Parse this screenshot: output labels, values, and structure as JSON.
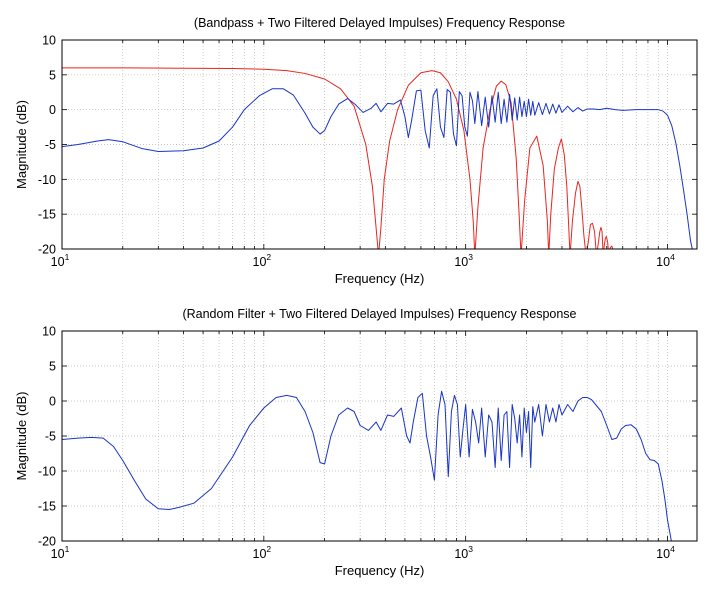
{
  "chart_data": [
    {
      "type": "line",
      "title": "(Bandpass + Two Filtered Delayed Impulses) Frequency Response",
      "xlabel": "Frequency (Hz)",
      "ylabel": "Magnitude (dB)",
      "xscale": "log",
      "xlim": [
        10,
        14000
      ],
      "ylim": [
        -20,
        10
      ],
      "grid": true,
      "yticks": [
        "10",
        "5",
        "0",
        "-5",
        "-10",
        "-15",
        "-20"
      ],
      "xtick_base": "10",
      "xtick_exponents": [
        "1",
        "2",
        "3",
        "4"
      ],
      "series": [
        {
          "color": "#e8261f",
          "x": [
            10,
            20,
            40,
            70,
            100,
            130,
            160,
            200,
            240,
            280,
            320,
            345,
            360,
            370,
            380,
            395,
            420,
            460,
            520,
            600,
            680,
            750,
            820,
            900,
            980,
            1050,
            1090,
            1110,
            1150,
            1220,
            1320,
            1420,
            1500,
            1580,
            1680,
            1780,
            1840,
            1880,
            1960,
            2080,
            2250,
            2420,
            2540,
            2580,
            2640,
            2750,
            2880,
            2980,
            3080,
            3170,
            3230,
            3290,
            3380,
            3500,
            3600,
            3680,
            3760,
            3850,
            3950,
            4050,
            4150,
            4250,
            4350,
            4450,
            4550,
            4620,
            4680,
            4740,
            4800,
            4860,
            4920,
            4980,
            5050,
            5120,
            5180,
            5240,
            5300,
            5360,
            5420,
            5480
          ],
          "y": [
            6,
            6,
            5.95,
            5.9,
            5.8,
            5.6,
            5.2,
            4.4,
            3,
            0.5,
            -5,
            -11,
            -17,
            -21,
            -17,
            -10,
            -4.5,
            0,
            3.5,
            5.3,
            5.6,
            5.3,
            4,
            1.5,
            -3,
            -10,
            -16,
            -21,
            -14,
            -5.5,
            0,
            3.4,
            4.1,
            3.6,
            1,
            -7,
            -15,
            -21,
            -13,
            -5.5,
            -3.8,
            -8,
            -16,
            -21,
            -15,
            -8.5,
            -5.5,
            -4.2,
            -6.5,
            -11,
            -16,
            -21,
            -16,
            -12,
            -10.3,
            -11,
            -14,
            -18,
            -21,
            -19,
            -16.5,
            -16.3,
            -17.5,
            -21,
            -19,
            -17.5,
            -16.9,
            -17.5,
            -21,
            -19.5,
            -18.5,
            -18.2,
            -19,
            -21,
            -20,
            -19.7,
            -19.6,
            -20,
            -21,
            -21
          ]
        },
        {
          "color": "#1a35c4",
          "x": [
            10,
            12,
            15,
            17,
            20,
            25,
            30,
            40,
            50,
            60,
            70,
            80,
            95,
            110,
            125,
            140,
            160,
            175,
            190,
            200,
            215,
            235,
            260,
            285,
            310,
            340,
            360,
            380,
            410,
            440,
            475,
            500,
            520,
            540,
            570,
            600,
            630,
            660,
            690,
            720,
            750,
            780,
            810,
            840,
            870,
            900,
            930,
            960,
            990,
            1020,
            1050,
            1080,
            1110,
            1150,
            1200,
            1250,
            1300,
            1350,
            1400,
            1450,
            1500,
            1550,
            1600,
            1650,
            1700,
            1750,
            1800,
            1850,
            1900,
            1950,
            2000,
            2050,
            2100,
            2150,
            2200,
            2300,
            2400,
            2500,
            2600,
            2700,
            2800,
            2900,
            3000,
            3200,
            3400,
            3600,
            3800,
            4000,
            4300,
            4600,
            5000,
            5500,
            6000,
            7000,
            8000,
            9000,
            9500,
            10000,
            10500,
            11000,
            11500,
            12000,
            12500,
            13000,
            13500
          ],
          "y": [
            -5.3,
            -5,
            -4.5,
            -4.3,
            -4.6,
            -5.6,
            -6,
            -5.9,
            -5.5,
            -4.5,
            -2.5,
            0,
            2,
            3,
            3,
            2.1,
            -0.5,
            -2.5,
            -3.5,
            -3,
            -1,
            0.8,
            1.6,
            0.7,
            -0.4,
            0.2,
            0.9,
            -0.3,
            0.9,
            0.8,
            1.4,
            -1,
            -4,
            -1.5,
            2.7,
            2.8,
            -3,
            -5.5,
            2,
            3,
            -2.5,
            -4,
            2.9,
            2.5,
            -3.5,
            -5.2,
            2.6,
            2,
            -2.5,
            -3.8,
            2.5,
            1.3,
            -2,
            2.6,
            -2.3,
            1.8,
            -2.5,
            2,
            -1.8,
            2.5,
            -2,
            1.5,
            -1.8,
            2.2,
            -1.5,
            1.7,
            -1.5,
            1.8,
            -1,
            1.2,
            -1,
            1.5,
            -0.8,
            1.2,
            -0.8,
            1,
            -0.7,
            0.9,
            -0.6,
            0.8,
            -0.5,
            0.7,
            -0.4,
            0.5,
            -0.3,
            0.3,
            -0.2,
            0.1,
            0.1,
            0,
            0.2,
            0,
            -0.1,
            0,
            0,
            0,
            -0.2,
            -0.8,
            -2.3,
            -4.8,
            -8,
            -11.5,
            -15,
            -18.8,
            -21
          ]
        }
      ]
    },
    {
      "type": "line",
      "title": "(Random Filter + Two Filtered Delayed Impulses) Frequency Response",
      "xlabel": "Frequency (Hz)",
      "ylabel": "Magnitude (dB)",
      "xscale": "log",
      "xlim": [
        10,
        14000
      ],
      "ylim": [
        -20,
        10
      ],
      "grid": true,
      "yticks": [
        "10",
        "5",
        "0",
        "-5",
        "-10",
        "-15",
        "-20"
      ],
      "xtick_base": "10",
      "xtick_exponents": [
        "1",
        "2",
        "3",
        "4"
      ],
      "series": [
        {
          "color": "#1a35c4",
          "x": [
            10,
            12,
            14,
            16,
            18,
            20,
            23,
            26,
            30,
            34,
            38,
            45,
            55,
            70,
            85,
            100,
            115,
            130,
            145,
            160,
            175,
            190,
            200,
            215,
            235,
            260,
            280,
            300,
            330,
            360,
            380,
            410,
            440,
            480,
            510,
            530,
            550,
            580,
            610,
            640,
            670,
            700,
            730,
            760,
            790,
            820,
            850,
            880,
            910,
            940,
            970,
            1000,
            1040,
            1080,
            1120,
            1160,
            1200,
            1250,
            1300,
            1350,
            1400,
            1450,
            1500,
            1550,
            1600,
            1650,
            1700,
            1750,
            1800,
            1850,
            1900,
            1950,
            2000,
            2050,
            2100,
            2150,
            2200,
            2300,
            2400,
            2500,
            2600,
            2700,
            2800,
            2900,
            3000,
            3200,
            3400,
            3600,
            3800,
            4000,
            4200,
            4400,
            4700,
            5000,
            5300,
            5600,
            5900,
            6200,
            6600,
            7000,
            7400,
            7800,
            8200,
            8600,
            9000,
            9400,
            9700,
            10000,
            10300,
            10600,
            10900,
            11200
          ],
          "y": [
            -5.5,
            -5.3,
            -5.2,
            -5.3,
            -6.5,
            -8.5,
            -11.5,
            -14,
            -15.4,
            -15.5,
            -15.2,
            -14.6,
            -12.5,
            -8,
            -3.5,
            -1,
            0.5,
            0.8,
            0.5,
            -1.5,
            -4.5,
            -8.8,
            -9,
            -5,
            -2,
            -1,
            -1.5,
            -3.5,
            -4.2,
            -3,
            -4.2,
            -2,
            -2.2,
            -1,
            -5,
            -6,
            -3,
            0.5,
            1.1,
            -5,
            -8,
            -11.3,
            -2,
            1.4,
            -0.5,
            -10.8,
            -1.5,
            0.8,
            -0.5,
            -8,
            -4,
            -0.5,
            -8,
            -1.2,
            -3,
            -6,
            -1,
            -8,
            -2,
            -3,
            -9.5,
            -1,
            -8.5,
            -2,
            -1.5,
            -9.5,
            -0.5,
            -2.5,
            -6,
            -2,
            -8,
            -1,
            -4.5,
            -1.5,
            -9.5,
            -0.8,
            -3,
            -0.5,
            -5,
            -0.5,
            -3,
            -1,
            -3,
            -0.5,
            -2,
            -0.5,
            -1.5,
            0,
            0.5,
            0.5,
            0.2,
            -0.5,
            -1.5,
            -3.5,
            -5.5,
            -5.3,
            -4,
            -3.5,
            -3.4,
            -4,
            -5.5,
            -7.5,
            -8.4,
            -8.5,
            -9,
            -11.5,
            -14,
            -17,
            -19,
            -21,
            -21,
            -21
          ]
        }
      ]
    }
  ]
}
